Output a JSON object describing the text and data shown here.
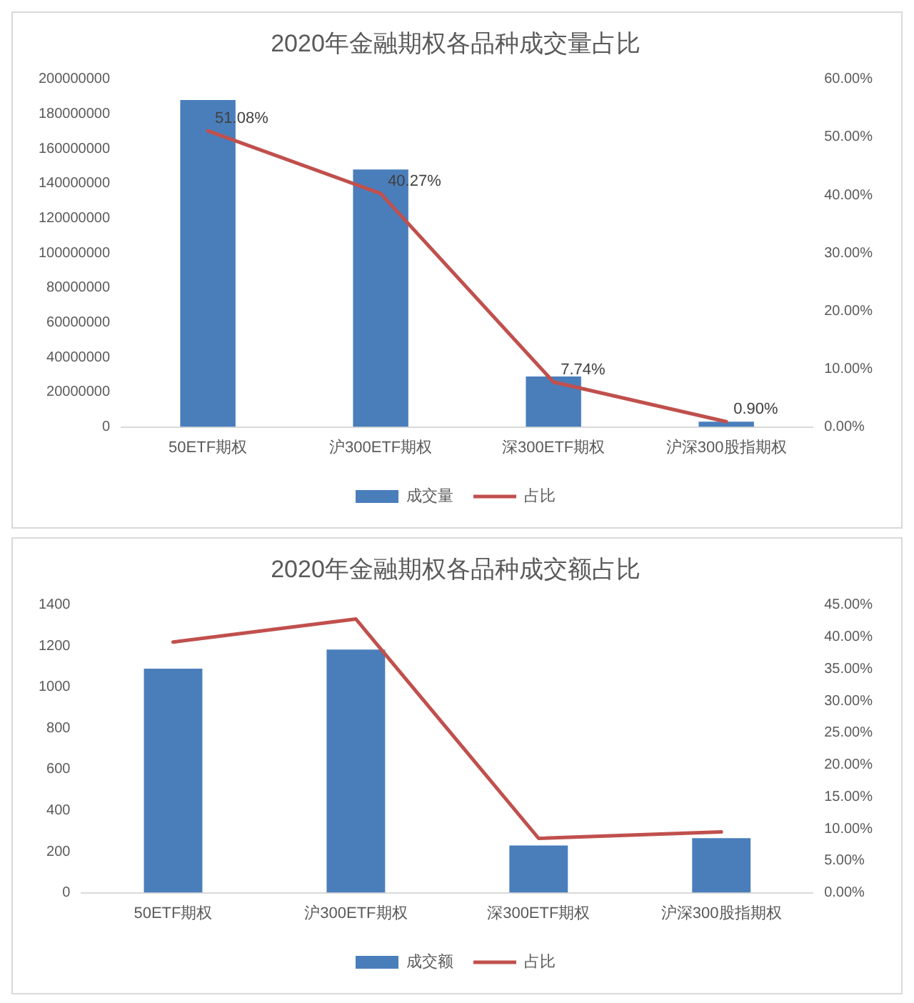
{
  "chart_data": [
    {
      "type": "bar",
      "title": "2020年金融期权各品种成交量占比",
      "categories": [
        "50ETF期权",
        "沪300ETF期权",
        "深300ETF期权",
        "沪深300股指期权"
      ],
      "series": [
        {
          "name": "成交量",
          "color": "#4a7ebb",
          "values": [
            188000000,
            148000000,
            29000000,
            3000000
          ]
        },
        {
          "name": "占比",
          "type": "line",
          "axis": "y2",
          "color": "#c0504d",
          "values": [
            51.08,
            40.27,
            7.74,
            0.9
          ],
          "value_labels": [
            "51.08%",
            "40.27%",
            "7.74%",
            "0.90%"
          ]
        }
      ],
      "ylim": [
        0,
        200000000
      ],
      "yticks": [
        0,
        20000000,
        40000000,
        60000000,
        80000000,
        100000000,
        120000000,
        140000000,
        160000000,
        180000000,
        200000000
      ],
      "y2lim": [
        0,
        60
      ],
      "y2ticks": [
        {
          "value": 0,
          "label": "0.00%"
        },
        {
          "value": 10,
          "label": "10.00%"
        },
        {
          "value": 20,
          "label": "20.00%"
        },
        {
          "value": 30,
          "label": "30.00%"
        },
        {
          "value": 40,
          "label": "40.00%"
        },
        {
          "value": 50,
          "label": "50.00%"
        },
        {
          "value": 60,
          "label": "60.00%"
        }
      ],
      "grid": false,
      "legend": "bottom"
    },
    {
      "type": "bar",
      "title": "2020年金融期权各品种成交额占比",
      "categories": [
        "50ETF期权",
        "沪300ETF期权",
        "深300ETF期权",
        "沪深300股指期权"
      ],
      "series": [
        {
          "name": "成交额",
          "color": "#4a7ebb",
          "values": [
            1090,
            1183,
            230,
            265
          ]
        },
        {
          "name": "占比",
          "type": "line",
          "axis": "y2",
          "color": "#c0504d",
          "values": [
            39.2,
            42.8,
            8.5,
            9.5
          ]
        }
      ],
      "ylim": [
        0,
        1400
      ],
      "yticks": [
        0,
        200,
        400,
        600,
        800,
        1000,
        1200,
        1400
      ],
      "y2lim": [
        0,
        45
      ],
      "y2ticks": [
        {
          "value": 0,
          "label": "0.00%"
        },
        {
          "value": 5,
          "label": "5.00%"
        },
        {
          "value": 10,
          "label": "10.00%"
        },
        {
          "value": 15,
          "label": "15.00%"
        },
        {
          "value": 20,
          "label": "20.00%"
        },
        {
          "value": 25,
          "label": "25.00%"
        },
        {
          "value": 30,
          "label": "30.00%"
        },
        {
          "value": 35,
          "label": "35.00%"
        },
        {
          "value": 40,
          "label": "40.00%"
        },
        {
          "value": 45,
          "label": "45.00%"
        }
      ],
      "grid": false,
      "legend": "bottom"
    }
  ]
}
